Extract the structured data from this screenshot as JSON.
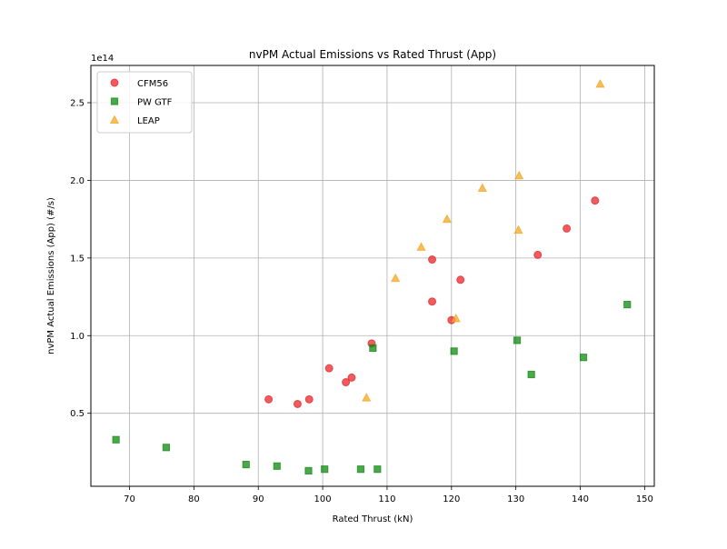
{
  "chart_data": {
    "type": "scatter",
    "title": "nvPM Actual Emissions vs Rated Thrust (App)",
    "xlabel": "Rated Thrust (kN)",
    "ylabel": "nvPM Actual Emissions (App) (#/s)",
    "y_offset_text": "1e14",
    "xlim": [
      64.0,
      151.5
    ],
    "ylim": [
      0.03,
      2.74
    ],
    "y_units_multiplier": 100000000000000.0,
    "xticks": [
      70,
      80,
      90,
      100,
      110,
      120,
      130,
      140,
      150
    ],
    "xtick_labels": [
      "70",
      "80",
      "90",
      "100",
      "110",
      "120",
      "130",
      "140",
      "150"
    ],
    "yticks": [
      0.5,
      1.0,
      1.5,
      2.0,
      2.5
    ],
    "ytick_labels": [
      "0.5",
      "1.0",
      "1.5",
      "2.0",
      "2.5"
    ],
    "grid": true,
    "legend_position": "top-left",
    "series": [
      {
        "name": "CFM56",
        "marker": "circle",
        "color": "#e8262a",
        "points": [
          {
            "x": 91.6,
            "y": 0.59
          },
          {
            "x": 96.1,
            "y": 0.56
          },
          {
            "x": 97.9,
            "y": 0.59
          },
          {
            "x": 101.0,
            "y": 0.79
          },
          {
            "x": 103.6,
            "y": 0.7
          },
          {
            "x": 104.5,
            "y": 0.73
          },
          {
            "x": 107.6,
            "y": 0.95
          },
          {
            "x": 117.0,
            "y": 1.22
          },
          {
            "x": 117.0,
            "y": 1.49
          },
          {
            "x": 120.0,
            "y": 1.1
          },
          {
            "x": 121.4,
            "y": 1.36
          },
          {
            "x": 133.4,
            "y": 1.52
          },
          {
            "x": 137.9,
            "y": 1.69
          },
          {
            "x": 142.3,
            "y": 1.87
          }
        ]
      },
      {
        "name": "PW GTF",
        "marker": "square",
        "color": "#108a10",
        "points": [
          {
            "x": 67.9,
            "y": 0.33
          },
          {
            "x": 75.7,
            "y": 0.28
          },
          {
            "x": 88.1,
            "y": 0.17
          },
          {
            "x": 92.9,
            "y": 0.16
          },
          {
            "x": 97.8,
            "y": 0.13
          },
          {
            "x": 100.3,
            "y": 0.14
          },
          {
            "x": 105.9,
            "y": 0.14
          },
          {
            "x": 107.8,
            "y": 0.92
          },
          {
            "x": 108.5,
            "y": 0.14
          },
          {
            "x": 120.4,
            "y": 0.9
          },
          {
            "x": 130.2,
            "y": 0.97
          },
          {
            "x": 132.4,
            "y": 0.75
          },
          {
            "x": 140.5,
            "y": 0.86
          },
          {
            "x": 147.3,
            "y": 1.2
          }
        ]
      },
      {
        "name": "LEAP",
        "marker": "triangle",
        "color": "#f5a623",
        "points": [
          {
            "x": 106.8,
            "y": 0.6
          },
          {
            "x": 111.3,
            "y": 1.37
          },
          {
            "x": 115.3,
            "y": 1.57
          },
          {
            "x": 119.3,
            "y": 1.75
          },
          {
            "x": 120.7,
            "y": 1.11
          },
          {
            "x": 124.8,
            "y": 1.95
          },
          {
            "x": 130.4,
            "y": 1.68
          },
          {
            "x": 130.5,
            "y": 2.03
          },
          {
            "x": 143.1,
            "y": 2.62
          }
        ]
      }
    ]
  }
}
